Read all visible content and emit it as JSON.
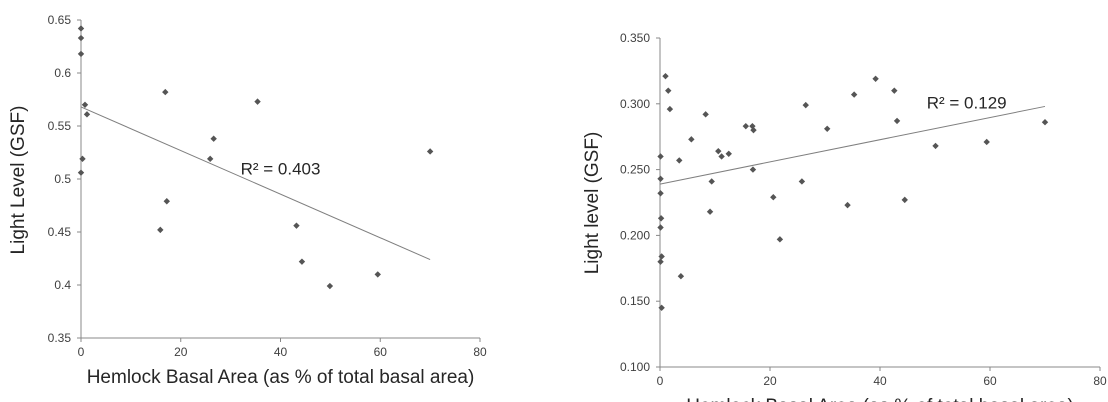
{
  "chart_data": [
    {
      "type": "scatter",
      "xlabel": "Hemlock Basal Area (as % of total basal area)",
      "ylabel": "Light Level (GSF)",
      "xlim": [
        0,
        80
      ],
      "ylim": [
        0.35,
        0.65
      ],
      "x_ticks": [
        "0",
        "20",
        "40",
        "60",
        "80"
      ],
      "y_ticks": [
        "0.35",
        "0.4",
        "0.45",
        "0.5",
        "0.55",
        "0.6",
        "0.65"
      ],
      "grid": false,
      "trendline": {
        "x": [
          0,
          70
        ],
        "y": [
          0.568,
          0.424
        ]
      },
      "annotation": "R² = 0.403",
      "annotation_at": {
        "x": 32,
        "y": 0.51
      },
      "points": [
        {
          "x": 0,
          "y": 0.642
        },
        {
          "x": 0,
          "y": 0.633
        },
        {
          "x": 0,
          "y": 0.618
        },
        {
          "x": 0.3,
          "y": 0.519
        },
        {
          "x": 0,
          "y": 0.506
        },
        {
          "x": 0.8,
          "y": 0.57
        },
        {
          "x": 1.2,
          "y": 0.561
        },
        {
          "x": 15.9,
          "y": 0.452
        },
        {
          "x": 16.9,
          "y": 0.582
        },
        {
          "x": 17.2,
          "y": 0.479
        },
        {
          "x": 25.9,
          "y": 0.519
        },
        {
          "x": 26.6,
          "y": 0.538
        },
        {
          "x": 35.4,
          "y": 0.573
        },
        {
          "x": 43.2,
          "y": 0.456
        },
        {
          "x": 44.3,
          "y": 0.422
        },
        {
          "x": 49.9,
          "y": 0.399
        },
        {
          "x": 59.5,
          "y": 0.41
        },
        {
          "x": 70,
          "y": 0.526
        }
      ]
    },
    {
      "type": "scatter",
      "xlabel": "Hemlock Basal Area (as % of total basal area)",
      "ylabel": "Light level (GSF)",
      "xlim": [
        0,
        80
      ],
      "ylim": [
        0.1,
        0.35
      ],
      "x_ticks": [
        "0",
        "20",
        "40",
        "60",
        "80"
      ],
      "y_ticks": [
        "0.100",
        "0.150",
        "0.200",
        "0.250",
        "0.300",
        "0.350"
      ],
      "grid": false,
      "trendline": {
        "x": [
          0,
          70
        ],
        "y": [
          0.239,
          0.298
        ]
      },
      "annotation": "R² = 0.129",
      "annotation_at": {
        "x": 48.5,
        "y": 0.301
      },
      "points": [
        {
          "x": 0.1,
          "y": 0.26
        },
        {
          "x": 0.1,
          "y": 0.243
        },
        {
          "x": 0.1,
          "y": 0.232
        },
        {
          "x": 0.2,
          "y": 0.213
        },
        {
          "x": 0.1,
          "y": 0.206
        },
        {
          "x": 0.3,
          "y": 0.184
        },
        {
          "x": 0.1,
          "y": 0.18
        },
        {
          "x": 0.3,
          "y": 0.145
        },
        {
          "x": 1.0,
          "y": 0.321
        },
        {
          "x": 1.5,
          "y": 0.31
        },
        {
          "x": 1.8,
          "y": 0.296
        },
        {
          "x": 3.5,
          "y": 0.257
        },
        {
          "x": 3.8,
          "y": 0.169
        },
        {
          "x": 5.7,
          "y": 0.273
        },
        {
          "x": 8.3,
          "y": 0.292
        },
        {
          "x": 9.1,
          "y": 0.218
        },
        {
          "x": 9.4,
          "y": 0.241
        },
        {
          "x": 10.6,
          "y": 0.264
        },
        {
          "x": 11.2,
          "y": 0.26
        },
        {
          "x": 12.5,
          "y": 0.262
        },
        {
          "x": 15.6,
          "y": 0.283
        },
        {
          "x": 16.8,
          "y": 0.283
        },
        {
          "x": 17.0,
          "y": 0.28
        },
        {
          "x": 16.9,
          "y": 0.25
        },
        {
          "x": 20.6,
          "y": 0.229
        },
        {
          "x": 21.8,
          "y": 0.197
        },
        {
          "x": 25.8,
          "y": 0.241
        },
        {
          "x": 26.5,
          "y": 0.299
        },
        {
          "x": 30.4,
          "y": 0.281
        },
        {
          "x": 34.1,
          "y": 0.223
        },
        {
          "x": 35.3,
          "y": 0.307
        },
        {
          "x": 39.2,
          "y": 0.319
        },
        {
          "x": 42.6,
          "y": 0.31
        },
        {
          "x": 43.1,
          "y": 0.287
        },
        {
          "x": 44.5,
          "y": 0.227
        },
        {
          "x": 50.1,
          "y": 0.268
        },
        {
          "x": 59.4,
          "y": 0.271
        },
        {
          "x": 70.0,
          "y": 0.286
        }
      ]
    }
  ],
  "colors": {
    "marker": "#555555",
    "trendline": "#7f7f7f",
    "axis": "#888888",
    "text": "#262626"
  }
}
